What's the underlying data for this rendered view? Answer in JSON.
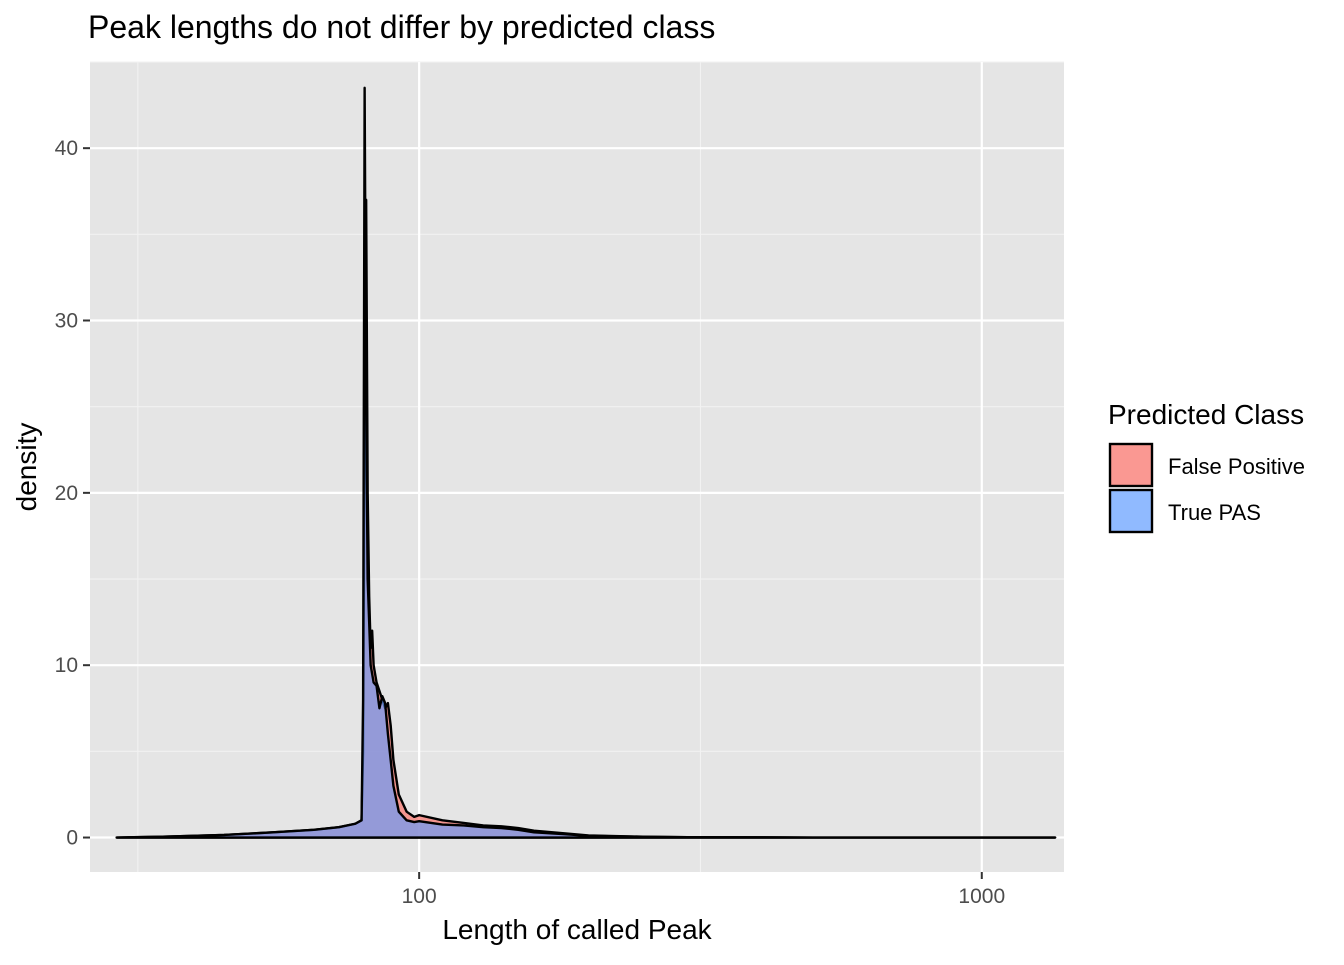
{
  "chart_data": {
    "type": "area",
    "title": "Peak lengths do not differ by predicted class",
    "xlabel": "Length of called Peak",
    "ylabel": "density",
    "x_scale": "log10",
    "xlim": [
      26,
      1400
    ],
    "ylim": [
      -2,
      45
    ],
    "x_ticks": [
      100,
      1000
    ],
    "x_tick_labels": [
      "100",
      "1000"
    ],
    "y_ticks": [
      0,
      10,
      20,
      30,
      40
    ],
    "y_tick_labels": [
      "0",
      "10",
      "20",
      "30",
      "40"
    ],
    "grid": true,
    "legend": {
      "title": "Predicted Class",
      "position": "right",
      "entries": [
        "False Positive",
        "True PAS"
      ]
    },
    "series": [
      {
        "name": "False Positive",
        "color": "#F8766D",
        "x": [
          29,
          35,
          45,
          55,
          65,
          72,
          77,
          79,
          79.5,
          80,
          80.5,
          81,
          81.5,
          82,
          82.5,
          83,
          84,
          85,
          86,
          87,
          88,
          89,
          90,
          92,
          95,
          98,
          100,
          110,
          120,
          130,
          140,
          150,
          160,
          180,
          200,
          250,
          300,
          400,
          500,
          700,
          1000,
          1350
        ],
        "y": [
          0,
          0.05,
          0.15,
          0.3,
          0.45,
          0.6,
          0.8,
          1.0,
          5,
          25,
          37,
          20,
          14,
          11,
          12,
          10,
          9,
          8.5,
          8,
          7.5,
          7.8,
          6.5,
          4.5,
          2.5,
          1.5,
          1.2,
          1.3,
          1.0,
          0.85,
          0.7,
          0.65,
          0.55,
          0.4,
          0.25,
          0.12,
          0.05,
          0.02,
          0.01,
          0,
          0,
          0,
          0
        ]
      },
      {
        "name": "True PAS",
        "color": "#619CFF",
        "x": [
          29,
          35,
          45,
          55,
          65,
          72,
          77,
          79,
          79.5,
          80,
          80.5,
          81,
          81.5,
          82,
          82.5,
          83,
          84,
          85,
          86,
          87,
          88,
          89,
          90,
          92,
          95,
          98,
          100,
          110,
          120,
          130,
          140,
          150,
          160,
          180,
          200,
          250,
          300,
          400,
          500,
          700,
          1000,
          1350
        ],
        "y": [
          0,
          0.05,
          0.15,
          0.3,
          0.45,
          0.6,
          0.8,
          1.0,
          8,
          43.5,
          25,
          15,
          12.5,
          10,
          9.5,
          9,
          8.8,
          7.5,
          8.2,
          7.8,
          6,
          4.5,
          3,
          1.5,
          1.0,
          0.9,
          0.95,
          0.75,
          0.7,
          0.6,
          0.55,
          0.45,
          0.3,
          0.2,
          0.1,
          0.04,
          0.02,
          0.01,
          0,
          0,
          0,
          0
        ]
      }
    ]
  }
}
